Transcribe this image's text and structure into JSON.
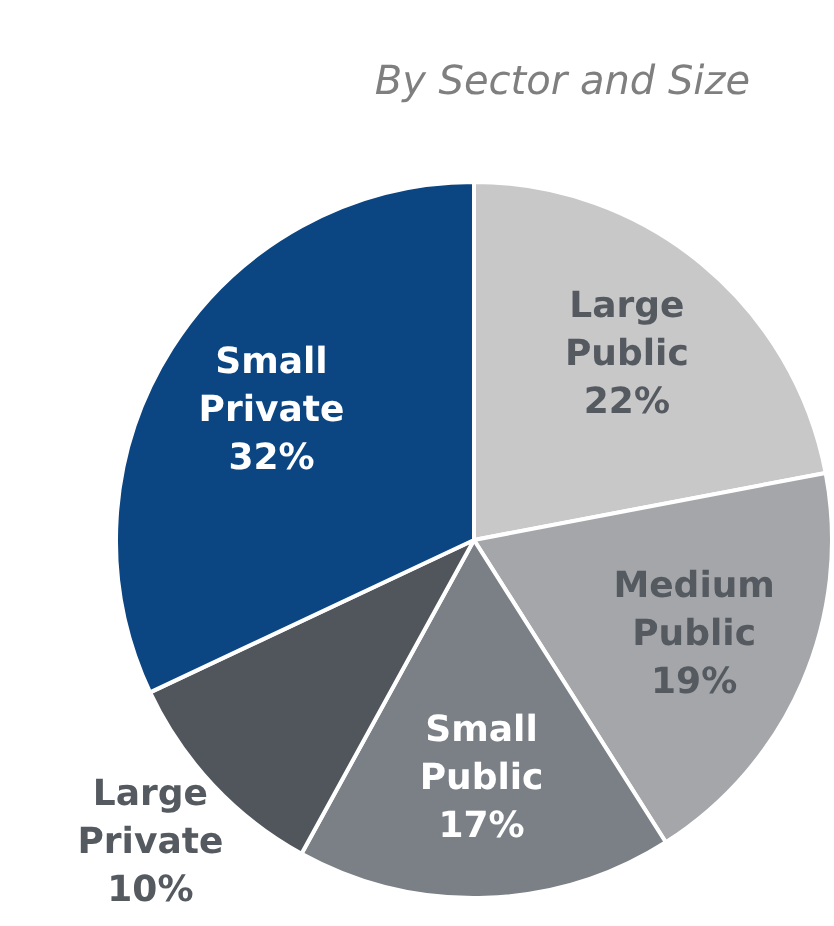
{
  "chart_data": {
    "type": "pie",
    "subtitle": "By Sector and Size",
    "categories": [
      "Large Public",
      "Medium Public",
      "Small Public",
      "Large Private",
      "Small Private"
    ],
    "values": [
      22,
      19,
      17,
      10,
      32
    ],
    "colors": [
      "#c8c8c9",
      "#a4a6a9",
      "#7b8087",
      "#51565d",
      "#0b4582"
    ],
    "value_labels": [
      "22%",
      "19%",
      "17%",
      "10%",
      "32%"
    ],
    "legend": false
  }
}
